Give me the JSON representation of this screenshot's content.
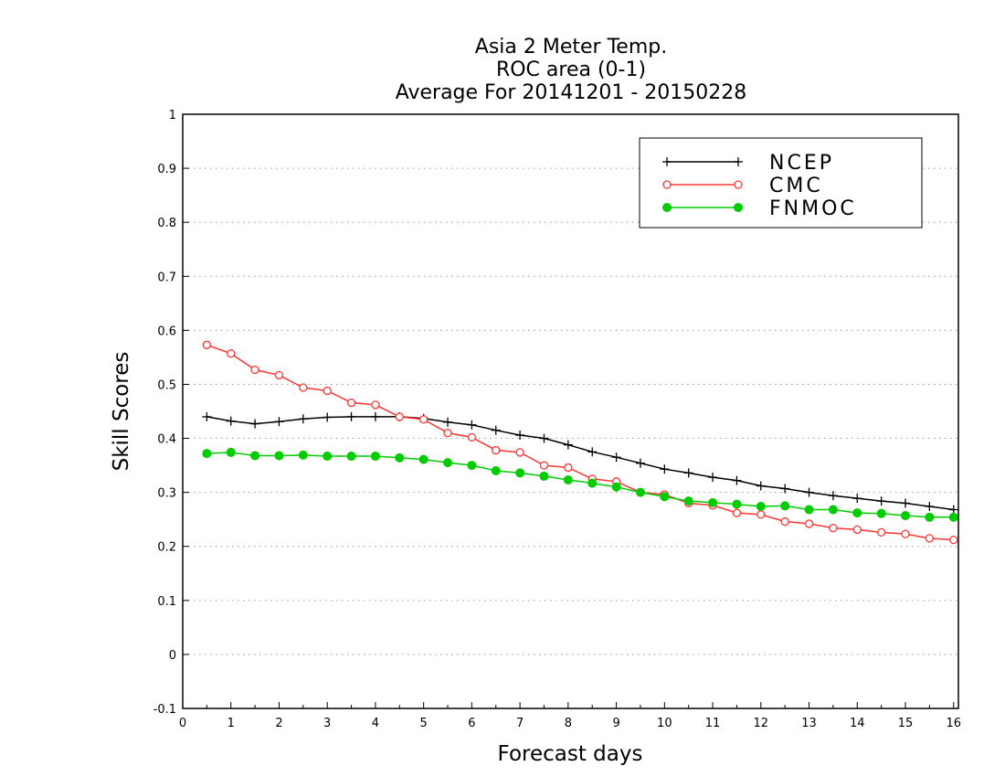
{
  "chart_data": {
    "type": "line",
    "title": [
      "Asia 2 Meter Temp.",
      "ROC area (0-1)",
      "Average For 20141201 - 20150228"
    ],
    "xlabel": "Forecast days",
    "ylabel": "Skill Scores",
    "xlim": [
      0,
      16.1
    ],
    "ylim": [
      -0.1,
      1
    ],
    "xticks": [
      0,
      1,
      2,
      3,
      4,
      5,
      6,
      7,
      8,
      9,
      10,
      11,
      12,
      13,
      14,
      15,
      16
    ],
    "yticks": [
      -0.1,
      0,
      0.1,
      0.2,
      0.3,
      0.4,
      0.5,
      0.6,
      0.7,
      0.8,
      0.9,
      1
    ],
    "ytick_labels": [
      "-0.1",
      "0",
      "0.1",
      "0.2",
      "0.3",
      "0.4",
      "0.5",
      "0.6",
      "0.7",
      "0.8",
      "0.9",
      "1"
    ],
    "grid": "horizontal-dotted",
    "legend_position": "top-right",
    "x": [
      0.5,
      1,
      1.5,
      2,
      2.5,
      3,
      3.5,
      4,
      4.5,
      5,
      5.5,
      6,
      6.5,
      7,
      7.5,
      8,
      8.5,
      9,
      9.5,
      10,
      10.5,
      11,
      11.5,
      12,
      12.5,
      13,
      13.5,
      14,
      14.5,
      15,
      15.5,
      16
    ],
    "series": [
      {
        "name": "NCEP",
        "color": "#000000",
        "marker": "plus",
        "values": [
          0.44,
          0.432,
          0.427,
          0.431,
          0.436,
          0.439,
          0.44,
          0.44,
          0.44,
          0.437,
          0.43,
          0.425,
          0.415,
          0.406,
          0.4,
          0.388,
          0.375,
          0.365,
          0.354,
          0.343,
          0.336,
          0.328,
          0.322,
          0.312,
          0.307,
          0.3,
          0.294,
          0.289,
          0.284,
          0.28,
          0.274,
          0.268
        ]
      },
      {
        "name": "CMC",
        "color": "#ff3333",
        "marker": "open-circle",
        "values": [
          0.573,
          0.557,
          0.527,
          0.517,
          0.494,
          0.488,
          0.466,
          0.462,
          0.44,
          0.435,
          0.41,
          0.402,
          0.378,
          0.374,
          0.35,
          0.346,
          0.325,
          0.32,
          0.3,
          0.296,
          0.28,
          0.276,
          0.262,
          0.259,
          0.246,
          0.242,
          0.234,
          0.231,
          0.226,
          0.223,
          0.215,
          0.212
        ]
      },
      {
        "name": "FNMOC",
        "color": "#00cc00",
        "marker": "filled-circle",
        "values": [
          0.372,
          0.374,
          0.368,
          0.368,
          0.369,
          0.367,
          0.367,
          0.367,
          0.364,
          0.361,
          0.355,
          0.35,
          0.34,
          0.336,
          0.33,
          0.323,
          0.317,
          0.31,
          0.3,
          0.292,
          0.284,
          0.281,
          0.278,
          0.274,
          0.275,
          0.268,
          0.268,
          0.262,
          0.261,
          0.257,
          0.254,
          0.254
        ]
      }
    ]
  }
}
